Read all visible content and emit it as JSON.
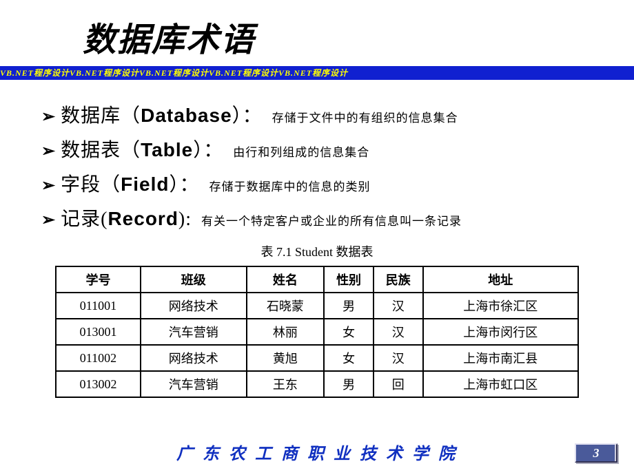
{
  "title": "数据库术语",
  "banner_text": "VB.NET程序设计VB.NET程序设计VB.NET程序设计VB.NET程序设计VB.NET程序设计",
  "bullets": [
    {
      "term_cn": "数据库",
      "term_en": "Database",
      "desc": "存储于文件中的有组织的信息集合",
      "paren_open": "（",
      "paren_close": "）："
    },
    {
      "term_cn": "数据表",
      "term_en": "Table",
      "desc": "由行和列组成的信息集合",
      "paren_open": "（",
      "paren_close": "）："
    },
    {
      "term_cn": "字段",
      "term_en": "Field",
      "desc": "存储于数据库中的信息的类别",
      "paren_open": "（",
      "paren_close": "）："
    },
    {
      "term_cn": "记录",
      "term_en": "Record",
      "desc": "有关一个特定客户或企业的所有信息叫一条记录",
      "paren_open": "(",
      "paren_close": "):"
    }
  ],
  "table": {
    "caption": "表 7.1    Student 数据表",
    "columns": [
      "学号",
      "班级",
      "姓名",
      "性别",
      "民族",
      "地址"
    ],
    "col_classes": [
      "col-id",
      "col-class",
      "col-name",
      "col-gender",
      "col-ethnic",
      "col-addr"
    ],
    "rows": [
      [
        "011001",
        "网络技术",
        "石晓蒙",
        "男",
        "汉",
        "上海市徐汇区"
      ],
      [
        "013001",
        "汽车营销",
        "林丽",
        "女",
        "汉",
        "上海市闵行区"
      ],
      [
        "011002",
        "网络技术",
        "黄旭",
        "女",
        "汉",
        "上海市南汇县"
      ],
      [
        "013002",
        "汽车营销",
        "王东",
        "男",
        "回",
        "上海市虹口区"
      ]
    ]
  },
  "footer": "广 东 农 工 商 职 业 技 术 学 院",
  "page_number": "3",
  "colors": {
    "banner_bg": "#1020d0",
    "banner_fg": "#ffff00",
    "footer_fg": "#1030c0",
    "badge_bg": "#4a5a9a"
  }
}
